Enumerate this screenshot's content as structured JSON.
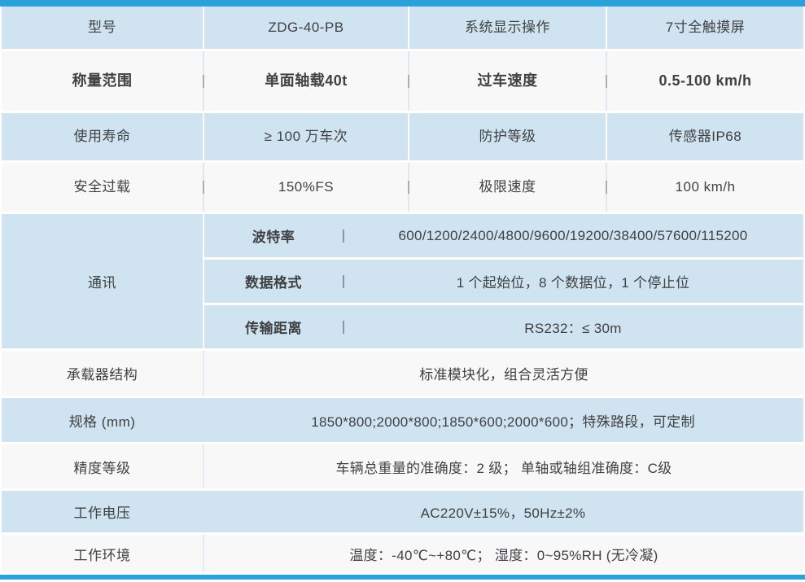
{
  "colors": {
    "accent_bar": "#29a2dc",
    "row_blue": "#cfe3f0",
    "row_white": "#f8f8f8",
    "text": "#3f4143"
  },
  "grid_rows": [
    {
      "cells": [
        "型号",
        "ZDG-40-PB",
        "系统显示操作",
        "7寸全触摸屏"
      ]
    },
    {
      "cells": [
        "称量范围",
        "单面轴载40t",
        "过车速度",
        "0.5-100 km/h"
      ]
    },
    {
      "cells": [
        "使用寿命",
        "≥ 100 万车次",
        "防护等级",
        "传感器IP68"
      ]
    },
    {
      "cells": [
        "安全过载",
        "150%FS",
        "极限速度",
        "100 km/h"
      ]
    }
  ],
  "comm_section": {
    "label": "通讯",
    "subrows": [
      {
        "label": "波特率",
        "value": "600/1200/2400/4800/9600/19200/38400/57600/115200"
      },
      {
        "label": "数据格式",
        "value": "1 个起始位，8 个数据位，1 个停止位"
      },
      {
        "label": "传输距离",
        "value": "RS232：≤ 30m"
      }
    ]
  },
  "span_rows": [
    {
      "label": "承载器结构",
      "value": "标准模块化，组合灵活方便"
    },
    {
      "label": "规格 (mm)",
      "value": "1850*800;2000*800;1850*600;2000*600；特殊路段，可定制"
    },
    {
      "label": "精度等级",
      "value": "车辆总重量的准确度：2 级； 单轴或轴组准确度：C级"
    },
    {
      "label": "工作电压",
      "value": "AC220V±15%，50Hz±2%"
    },
    {
      "label": "工作环境",
      "value": "温度：-40℃~+80℃； 湿度：0~95%RH (无冷凝)"
    }
  ]
}
